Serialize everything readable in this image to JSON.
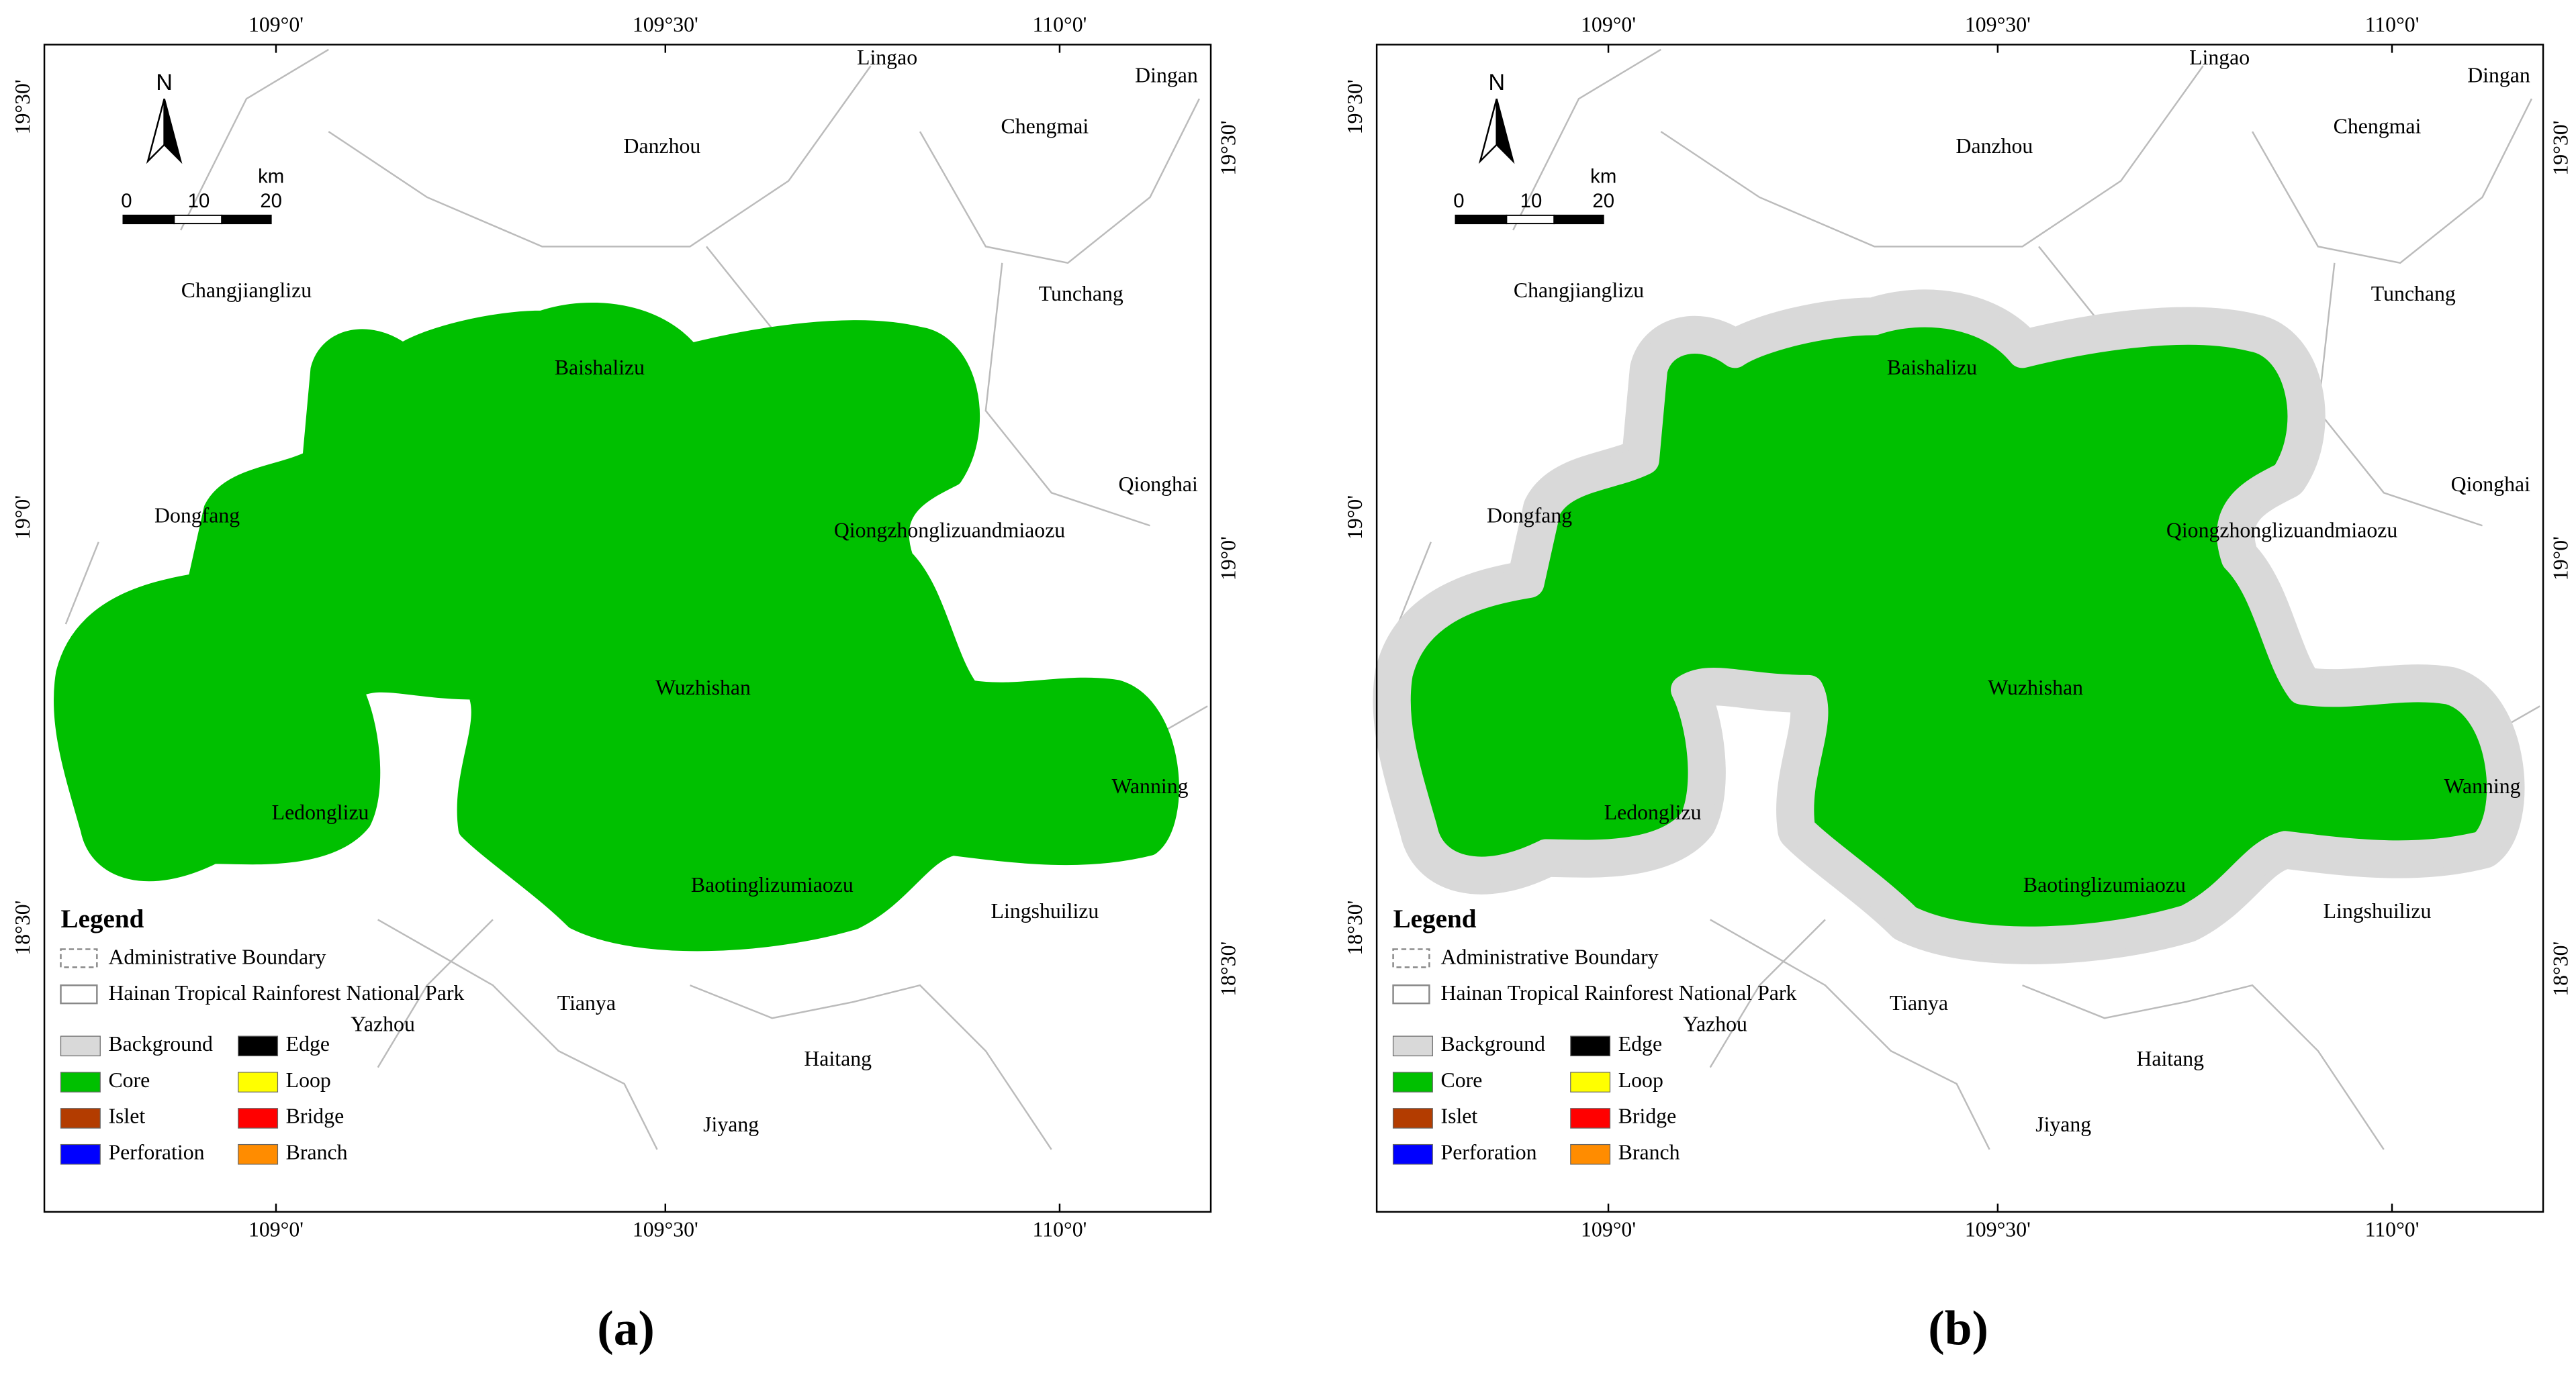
{
  "panels": [
    {
      "label": "(a)",
      "lon_ticks": [
        "109°0'",
        "109°30'",
        "110°0'"
      ],
      "lat_ticks": [
        "19°30'",
        "19°0'",
        "18°30'"
      ],
      "north": "N",
      "scale": {
        "labels": [
          "0",
          "10",
          "20"
        ],
        "unit": "km"
      },
      "places": [
        "Lingao",
        "Dingan",
        "Chengmai",
        "Danzhou",
        "Changjianglizu",
        "Tunchang",
        "Baishalizu",
        "Qionghai",
        "Dongfang",
        "Qiongzhonglizuandmiaozu",
        "Wuzhishan",
        "Wanning",
        "Ledonglizu",
        "Baotinglizumiaozu",
        "Lingshuilizu",
        "Tianya",
        "Yazhou",
        "Haitang",
        "Jiyang"
      ],
      "legend": {
        "title": "Legend",
        "boundary": "Administrative Boundary",
        "park": "Hainan Tropical Rainforest National Park",
        "classes": [
          {
            "name": "Background",
            "color": "#d9d9d9"
          },
          {
            "name": "Edge",
            "color": "#000000"
          },
          {
            "name": "Core",
            "color": "#00c000"
          },
          {
            "name": "Loop",
            "color": "#ffff00"
          },
          {
            "name": "Islet",
            "color": "#b33c00"
          },
          {
            "name": "Bridge",
            "color": "#ff0000"
          },
          {
            "name": "Perforation",
            "color": "#0000ff"
          },
          {
            "name": "Branch",
            "color": "#ff8c00"
          }
        ]
      }
    },
    {
      "label": "(b)",
      "lon_ticks": [
        "109°0'",
        "109°30'",
        "110°0'"
      ],
      "lat_ticks": [
        "19°30'",
        "19°0'",
        "18°30'"
      ],
      "north": "N",
      "scale": {
        "labels": [
          "0",
          "10",
          "20"
        ],
        "unit": "km"
      },
      "places": [
        "Lingao",
        "Dingan",
        "Chengmai",
        "Danzhou",
        "Changjianglizu",
        "Tunchang",
        "Baishalizu",
        "Qionghai",
        "Dongfang",
        "Qiongzhonglizuandmiaozu",
        "Wuzhishan",
        "Wanning",
        "Ledonglizu",
        "Baotinglizumiaozu",
        "Lingshuilizu",
        "Tianya",
        "Yazhou",
        "Haitang",
        "Jiyang"
      ],
      "legend": {
        "title": "Legend",
        "boundary": "Administrative Boundary",
        "park": "Hainan Tropical Rainforest National Park",
        "classes": [
          {
            "name": "Background",
            "color": "#d9d9d9"
          },
          {
            "name": "Edge",
            "color": "#000000"
          },
          {
            "name": "Core",
            "color": "#00c000"
          },
          {
            "name": "Loop",
            "color": "#ffff00"
          },
          {
            "name": "Islet",
            "color": "#b33c00"
          },
          {
            "name": "Bridge",
            "color": "#ff0000"
          },
          {
            "name": "Perforation",
            "color": "#0000ff"
          },
          {
            "name": "Branch",
            "color": "#ff8c00"
          }
        ]
      }
    }
  ]
}
